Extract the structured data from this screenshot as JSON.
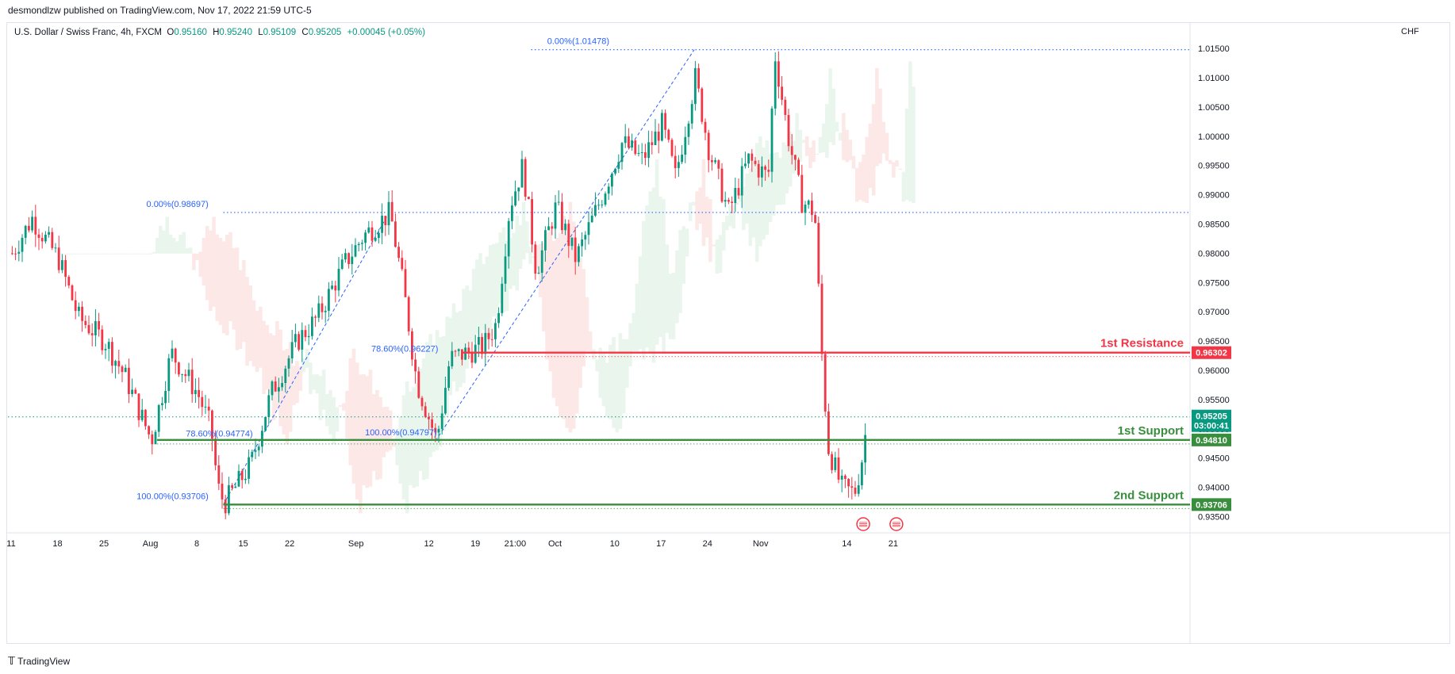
{
  "publisher_line": "desmondlzw published on TradingView.com, Nov 17, 2022 21:59 UTC-5",
  "legend": {
    "symbol": "U.S. Dollar / Swiss Franc, 4h, FXCM",
    "o_key": "O",
    "o": "0.95160",
    "h_key": "H",
    "h": "0.95240",
    "l_key": "L",
    "l": "0.95109",
    "c_key": "C",
    "c": "0.95205",
    "change": "+0.00045 (+0.05%)"
  },
  "currency": "CHF",
  "footer_brand": "TradingView",
  "colors": {
    "up": "#089981",
    "down": "#f23645",
    "resistance": "#f23645",
    "support": "#388e3c",
    "fib": "#2962ff",
    "cloud_green": "#e6f4ea",
    "cloud_red": "#fde4e4"
  },
  "chart_data": {
    "type": "candlestick",
    "ylim": [
      0.9325,
      1.0165
    ],
    "y_ticks": [
      "1.01500",
      "1.01000",
      "1.00500",
      "1.00000",
      "0.99500",
      "0.99000",
      "0.98500",
      "0.98000",
      "0.97500",
      "0.97000",
      "0.96500",
      "0.96000",
      "0.95500",
      "0.95000",
      "0.94500",
      "0.94000",
      "0.93500"
    ],
    "x_ticks": [
      "11",
      "18",
      "25",
      "Aug",
      "8",
      "15",
      "22",
      "Sep",
      "12",
      "19",
      "21:00",
      "Oct",
      "10",
      "17",
      "24",
      "Nov",
      "14",
      "21"
    ],
    "price_path": [
      {
        "d": "Jul 11",
        "p": 0.98
      },
      {
        "d": "Jul 14",
        "p": 0.986
      },
      {
        "d": "Jul 18",
        "p": 0.979
      },
      {
        "d": "Jul 21",
        "p": 0.969
      },
      {
        "d": "Jul 25",
        "p": 0.965
      },
      {
        "d": "Jul 28",
        "p": 0.959
      },
      {
        "d": "Aug 1",
        "p": 0.948
      },
      {
        "d": "Aug 4",
        "p": 0.963
      },
      {
        "d": "Aug 8",
        "p": 0.956
      },
      {
        "d": "Aug 10",
        "p": 0.95
      },
      {
        "d": "Aug 11",
        "p": 0.94
      },
      {
        "d": "Aug 12",
        "p": 0.9372
      },
      {
        "d": "Aug 16",
        "p": 0.944
      },
      {
        "d": "Aug 19",
        "p": 0.956
      },
      {
        "d": "Aug 23",
        "p": 0.965
      },
      {
        "d": "Aug 26",
        "p": 0.969
      },
      {
        "d": "Aug 30",
        "p": 0.978
      },
      {
        "d": "Sep 2",
        "p": 0.983
      },
      {
        "d": "Sep 6",
        "p": 0.9869
      },
      {
        "d": "Sep 8",
        "p": 0.974
      },
      {
        "d": "Sep 10",
        "p": 0.958
      },
      {
        "d": "Sep 13",
        "p": 0.948
      },
      {
        "d": "Sep 15",
        "p": 0.962
      },
      {
        "d": "Sep 20",
        "p": 0.964
      },
      {
        "d": "Sep 22",
        "p": 0.968
      },
      {
        "d": "Sep 24",
        "p": 0.988
      },
      {
        "d": "Sep 26",
        "p": 0.995
      },
      {
        "d": "Sep 28",
        "p": 0.977
      },
      {
        "d": "Oct 1",
        "p": 0.988
      },
      {
        "d": "Oct 4",
        "p": 0.979
      },
      {
        "d": "Oct 8",
        "p": 0.99
      },
      {
        "d": "Oct 11",
        "p": 0.999
      },
      {
        "d": "Oct 14",
        "p": 0.996
      },
      {
        "d": "Oct 17",
        "p": 1.002
      },
      {
        "d": "Oct 19",
        "p": 0.993
      },
      {
        "d": "Oct 22",
        "p": 1.01
      },
      {
        "d": "Oct 24",
        "p": 0.998
      },
      {
        "d": "Oct 27",
        "p": 0.987
      },
      {
        "d": "Oct 30",
        "p": 0.996
      },
      {
        "d": "Nov 2",
        "p": 0.993
      },
      {
        "d": "Nov 3",
        "p": 1.014
      },
      {
        "d": "Nov 5",
        "p": 1.0
      },
      {
        "d": "Nov 7",
        "p": 0.989
      },
      {
        "d": "Nov 9",
        "p": 0.987
      },
      {
        "d": "Nov 10",
        "p": 0.964
      },
      {
        "d": "Nov 11",
        "p": 0.947
      },
      {
        "d": "Nov 13",
        "p": 0.94
      },
      {
        "d": "Nov 15",
        "p": 0.939
      },
      {
        "d": "Nov 16",
        "p": 0.944
      },
      {
        "d": "Nov 17",
        "p": 0.952
      }
    ],
    "levels": [
      {
        "name": "resistance",
        "label": "1st Resistance",
        "value": 0.96302,
        "tag": "0.96302"
      },
      {
        "name": "support-1",
        "label": "1st Support",
        "value": 0.9481,
        "tag": "0.94810"
      },
      {
        "name": "support-2",
        "label": "2nd Support",
        "value": 0.93706,
        "tag": "0.93706"
      }
    ],
    "current_price": {
      "value": 0.95205,
      "tag": "0.95205",
      "countdown": "03:00:41"
    },
    "fib_labels": [
      {
        "text": "0.00%(1.01478)",
        "value": 1.01478
      },
      {
        "text": "0.00%(0.98697)",
        "value": 0.98697
      },
      {
        "text": "78.60%(0.96227)",
        "value": 0.96227
      },
      {
        "text": "78.60%(0.94774)",
        "value": 0.94774
      },
      {
        "text": "100.00%(0.94797)",
        "value": 0.94797
      },
      {
        "text": "100.00%(0.93706)",
        "value": 0.93706
      }
    ]
  }
}
